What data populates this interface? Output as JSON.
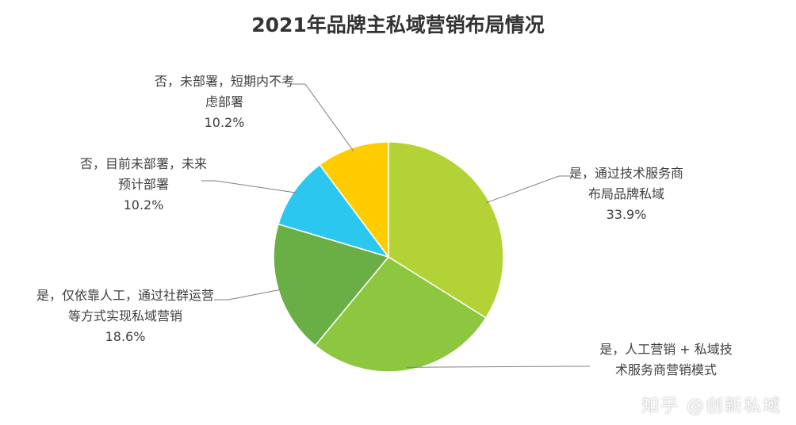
{
  "chart_data": {
    "type": "pie",
    "title": "2021年品牌主私域营销布局情况",
    "slices": [
      {
        "label_lines": [
          "是，通过技术服务商",
          "布局品牌私域"
        ],
        "value": 33.9,
        "value_label": "33.9%",
        "color": "#b2d235"
      },
      {
        "label_lines": [
          "是，人工营销 + 私域技",
          "术服务商营销模式"
        ],
        "value": 27.1,
        "value_label": "",
        "color": "#8dc63f"
      },
      {
        "label_lines": [
          "是，仅依靠人工，通过社群运营",
          "等方式实现私域营销"
        ],
        "value": 18.6,
        "value_label": "18.6%",
        "color": "#6aaf45"
      },
      {
        "label_lines": [
          "否，目前未部署，未来",
          "预计部署"
        ],
        "value": 10.2,
        "value_label": "10.2%",
        "color": "#2cc7ef"
      },
      {
        "label_lines": [
          "否，未部署，短期内不考",
          "虑部署"
        ],
        "value": 10.2,
        "value_label": "10.2%",
        "color": "#ffcc00"
      }
    ]
  },
  "watermark": {
    "text": "知乎 @创新私域"
  }
}
